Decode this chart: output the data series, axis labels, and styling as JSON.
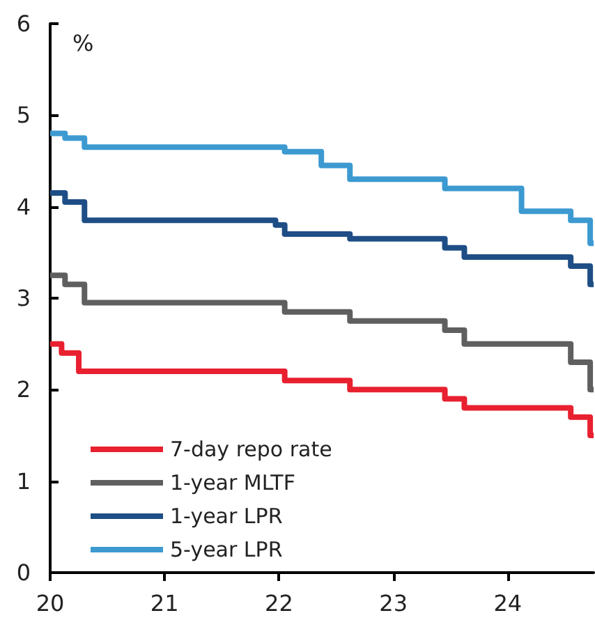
{
  "chart_data": {
    "type": "step",
    "ylabel": "%",
    "xlim": [
      2020,
      2024.75
    ],
    "xticks": [
      {
        "value": 2020,
        "label": "20"
      },
      {
        "value": 2021,
        "label": "21"
      },
      {
        "value": 2022,
        "label": "22"
      },
      {
        "value": 2023,
        "label": "23"
      },
      {
        "value": 2024,
        "label": "24"
      }
    ],
    "ylim": [
      0,
      6
    ],
    "yticks": [
      0,
      1,
      2,
      3,
      4,
      5,
      6
    ],
    "grid": false,
    "legend": "bottom left",
    "marker": "none",
    "line_style": "solid",
    "series": [
      {
        "name": "7-day repo rate",
        "color": "#e8202f",
        "x": [
          2020,
          2020.1,
          2020.25,
          2022.05,
          2022.62,
          2023.45,
          2023.62,
          2024.55,
          2024.72,
          2024.75
        ],
        "values": [
          2.5,
          2.4,
          2.2,
          2.1,
          2.0,
          1.9,
          1.8,
          1.7,
          1.5,
          1.5
        ]
      },
      {
        "name": "1-year MLTF",
        "color": "#5f5f5f",
        "x": [
          2020,
          2020.13,
          2020.3,
          2022.05,
          2022.62,
          2023.45,
          2023.62,
          2024.55,
          2024.72,
          2024.75
        ],
        "values": [
          3.25,
          3.15,
          2.95,
          2.85,
          2.75,
          2.65,
          2.5,
          2.3,
          2.0,
          2.0
        ]
      },
      {
        "name": "1-year LPR",
        "color": "#1f4e86",
        "x": [
          2020,
          2020.13,
          2020.3,
          2021.97,
          2022.05,
          2022.62,
          2023.45,
          2023.62,
          2024.55,
          2024.72,
          2024.75
        ],
        "values": [
          4.15,
          4.05,
          3.85,
          3.8,
          3.7,
          3.65,
          3.55,
          3.45,
          3.35,
          3.15,
          3.15
        ]
      },
      {
        "name": "5-year LPR",
        "color": "#3d9ad1",
        "x": [
          2020,
          2020.13,
          2020.3,
          2022.05,
          2022.37,
          2022.62,
          2023.45,
          2024.12,
          2024.55,
          2024.72,
          2024.75
        ],
        "values": [
          4.8,
          4.75,
          4.65,
          4.6,
          4.45,
          4.3,
          4.2,
          3.95,
          3.85,
          3.6,
          3.6
        ]
      }
    ]
  }
}
